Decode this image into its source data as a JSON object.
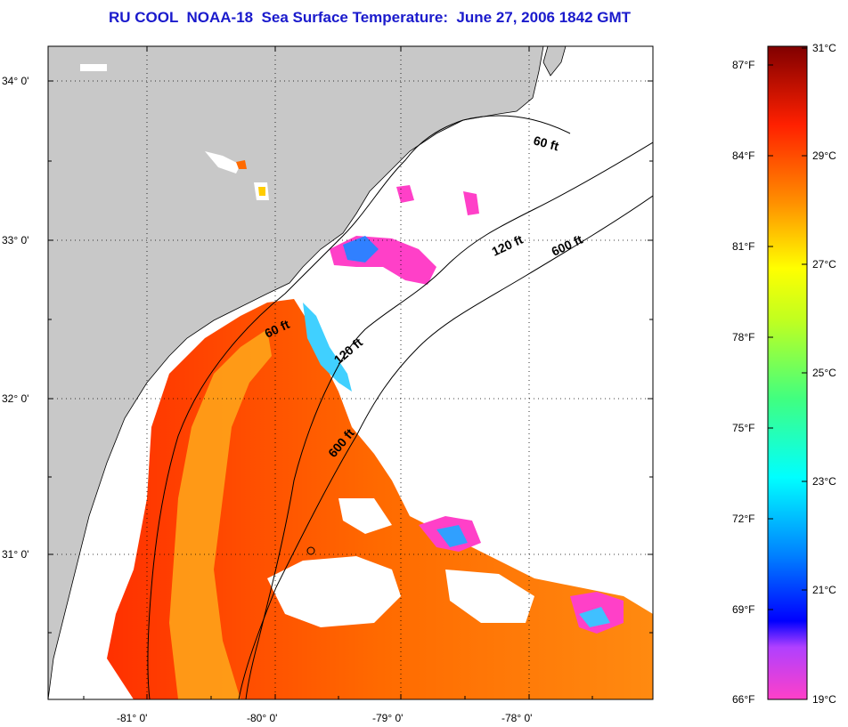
{
  "title": "RU COOL  NOAA-18  Sea Surface Temperature:  June 27, 2006 1842 GMT",
  "lat_labels": [
    "34° 0'",
    "33° 0'",
    "32° 0'",
    "31° 0'"
  ],
  "lon_labels": [
    "-81° 0'",
    "-80° 0'",
    "-79° 0'",
    "-78° 0'"
  ],
  "contour_labels": [
    "60 ft",
    "120 ft",
    "600 ft",
    "60 ft",
    "120 ft",
    "600 ft"
  ],
  "colorbar": {
    "fahrenheit": [
      "87°F",
      "84°F",
      "81°F",
      "78°F",
      "75°F",
      "72°F",
      "69°F",
      "66°F"
    ],
    "celsius": [
      "31°C",
      "29°C",
      "27°C",
      "25°C",
      "23°C",
      "21°C",
      "19°C"
    ]
  },
  "colors": {
    "land": "#c8c8c8",
    "title": "#1a1acc"
  }
}
